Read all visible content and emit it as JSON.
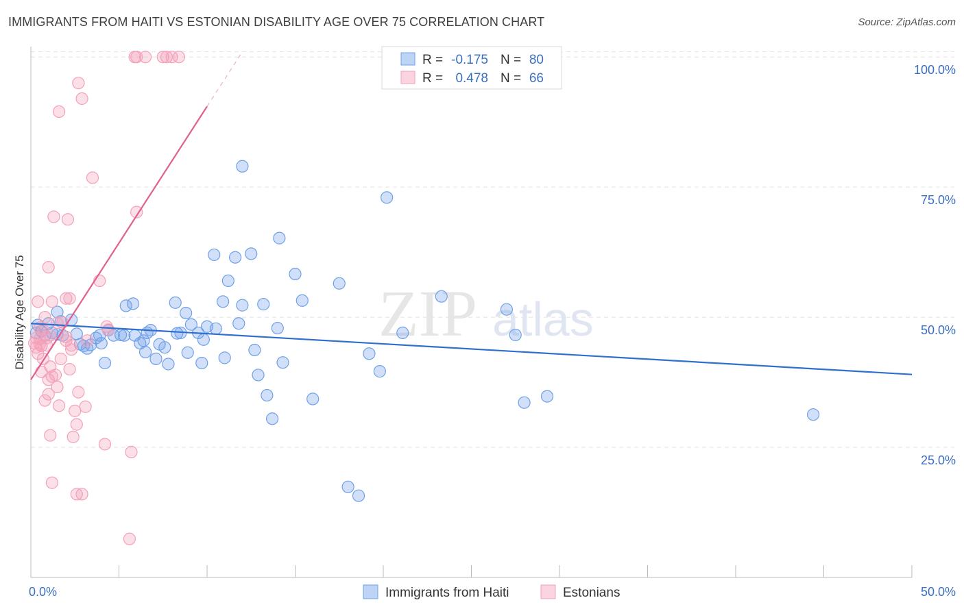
{
  "title": "IMMIGRANTS FROM HAITI VS ESTONIAN DISABILITY AGE OVER 75 CORRELATION CHART",
  "source": "Source: ZipAtlas.com",
  "watermark": {
    "zip": "ZIP",
    "atlas": "atlas"
  },
  "chart_data": {
    "type": "scatter",
    "ylabel": "Disability Age Over 75",
    "xlim": [
      0,
      50
    ],
    "ylim": [
      0,
      102
    ],
    "x_ticks_labeled": [
      {
        "value": 0,
        "label": "0.0%"
      },
      {
        "value": 50,
        "label": "50.0%"
      }
    ],
    "y_ticks": [
      {
        "value": 25,
        "label": "25.0%"
      },
      {
        "value": 50,
        "label": "50.0%"
      },
      {
        "value": 75,
        "label": "75.0%"
      },
      {
        "value": 100,
        "label": "100.0%"
      }
    ],
    "grid": true,
    "legend_position": "top-center",
    "series": [
      {
        "name": "Immigrants from Haiti",
        "color": "#6fa0e8",
        "line_color": "#2f6fcf",
        "stats": {
          "r_label": "R =",
          "r_value": "-0.175",
          "n_label": "N =",
          "n_value": "80"
        },
        "trend": {
          "x0": 0,
          "y0": 48.8,
          "x1": 50,
          "y1": 39.0
        },
        "points": [
          [
            0.4,
            48.5
          ],
          [
            0.6,
            47.3
          ],
          [
            0.8,
            46.5
          ],
          [
            1.0,
            48.8
          ],
          [
            1.2,
            47.0
          ],
          [
            1.5,
            51.0
          ],
          [
            1.7,
            49.2
          ],
          [
            1.8,
            46.5
          ],
          [
            2.3,
            49.5
          ],
          [
            2.6,
            46.8
          ],
          [
            2.8,
            44.8
          ],
          [
            3.0,
            44.5
          ],
          [
            3.2,
            44.0
          ],
          [
            3.4,
            44.7
          ],
          [
            3.9,
            46.5
          ],
          [
            4.0,
            45.0
          ],
          [
            4.2,
            41.2
          ],
          [
            4.4,
            47.5
          ],
          [
            4.7,
            46.5
          ],
          [
            5.1,
            46.6
          ],
          [
            5.3,
            46.5
          ],
          [
            5.4,
            52.2
          ],
          [
            5.8,
            52.6
          ],
          [
            5.9,
            46.5
          ],
          [
            6.2,
            45.0
          ],
          [
            6.4,
            45.5
          ],
          [
            6.5,
            43.3
          ],
          [
            6.6,
            47.0
          ],
          [
            6.8,
            47.5
          ],
          [
            7.1,
            42.0
          ],
          [
            7.3,
            44.8
          ],
          [
            7.6,
            44.2
          ],
          [
            7.8,
            41.0
          ],
          [
            8.2,
            52.8
          ],
          [
            8.3,
            46.9
          ],
          [
            8.5,
            47.0
          ],
          [
            8.8,
            50.8
          ],
          [
            8.9,
            43.2
          ],
          [
            9.1,
            48.6
          ],
          [
            9.5,
            47.0
          ],
          [
            9.7,
            41.2
          ],
          [
            9.8,
            45.7
          ],
          [
            10.0,
            48.2
          ],
          [
            10.5,
            47.8
          ],
          [
            10.4,
            62.0
          ],
          [
            10.9,
            53.0
          ],
          [
            11.0,
            42.2
          ],
          [
            11.6,
            61.5
          ],
          [
            11.2,
            57.0
          ],
          [
            11.8,
            48.8
          ],
          [
            12.0,
            52.3
          ],
          [
            12.0,
            79.0
          ],
          [
            12.5,
            62.2
          ],
          [
            12.7,
            43.7
          ],
          [
            12.9,
            38.9
          ],
          [
            13.2,
            52.5
          ],
          [
            13.4,
            35.0
          ],
          [
            13.7,
            30.5
          ],
          [
            14.0,
            47.9
          ],
          [
            14.1,
            65.2
          ],
          [
            14.3,
            41.3
          ],
          [
            15.0,
            58.3
          ],
          [
            15.4,
            53.2
          ],
          [
            16.0,
            34.3
          ],
          [
            17.5,
            56.5
          ],
          [
            18.0,
            17.4
          ],
          [
            18.6,
            15.7
          ],
          [
            19.2,
            43.0
          ],
          [
            19.8,
            39.6
          ],
          [
            20.2,
            73.0
          ],
          [
            21.1,
            47.0
          ],
          [
            23.3,
            54.0
          ],
          [
            27.0,
            51.5
          ],
          [
            27.5,
            46.6
          ],
          [
            28.0,
            33.6
          ],
          [
            29.3,
            34.8
          ],
          [
            44.4,
            31.3
          ],
          [
            0.3,
            47.0
          ],
          [
            1.5,
            46.7
          ],
          [
            3.7,
            46.0
          ]
        ]
      },
      {
        "name": "Estonians",
        "color": "#f4a0b8",
        "line_color": "#e0608f",
        "stats": {
          "r_label": "R =",
          "r_value": "0.478",
          "n_label": "N =",
          "n_value": "66"
        },
        "trend": {
          "x0": 0,
          "y0": 38.0,
          "x1": 10.0,
          "y1": 90.5
        },
        "trend_ext": {
          "x0": 10.0,
          "y0": 90.5,
          "x1": 12.0,
          "y1": 101.0
        },
        "points": [
          [
            0.2,
            45.0
          ],
          [
            0.3,
            46.0
          ],
          [
            0.3,
            44.2
          ],
          [
            0.4,
            43.0
          ],
          [
            0.4,
            53.0
          ],
          [
            0.5,
            48.0
          ],
          [
            0.5,
            45.8
          ],
          [
            0.6,
            44.5
          ],
          [
            0.6,
            39.5
          ],
          [
            0.7,
            47.5
          ],
          [
            0.7,
            42.0
          ],
          [
            0.8,
            50.0
          ],
          [
            0.8,
            34.0
          ],
          [
            0.9,
            46.0
          ],
          [
            0.9,
            44.6
          ],
          [
            1.0,
            59.6
          ],
          [
            1.0,
            35.2
          ],
          [
            1.0,
            38.0
          ],
          [
            1.1,
            46.5
          ],
          [
            1.1,
            40.5
          ],
          [
            1.1,
            27.3
          ],
          [
            1.2,
            53.0
          ],
          [
            1.2,
            38.6
          ],
          [
            1.2,
            18.2
          ],
          [
            1.3,
            69.3
          ],
          [
            1.4,
            38.9
          ],
          [
            1.5,
            48.9
          ],
          [
            1.5,
            36.6
          ],
          [
            1.6,
            89.5
          ],
          [
            1.6,
            33.0
          ],
          [
            1.7,
            42.0
          ],
          [
            1.8,
            49.0
          ],
          [
            2.0,
            46.2
          ],
          [
            2.0,
            45.5
          ],
          [
            2.0,
            53.6
          ],
          [
            2.1,
            68.8
          ],
          [
            2.2,
            53.6
          ],
          [
            2.2,
            40.0
          ],
          [
            2.3,
            44.6
          ],
          [
            2.4,
            27.0
          ],
          [
            2.5,
            32.0
          ],
          [
            2.6,
            29.4
          ],
          [
            2.6,
            16.0
          ],
          [
            2.7,
            35.6
          ],
          [
            2.7,
            95.0
          ],
          [
            2.9,
            92.0
          ],
          [
            2.9,
            16.0
          ],
          [
            3.1,
            32.8
          ],
          [
            3.2,
            45.5
          ],
          [
            3.5,
            76.8
          ],
          [
            3.9,
            57.0
          ],
          [
            4.2,
            25.6
          ],
          [
            4.3,
            48.2
          ],
          [
            4.4,
            47.6
          ],
          [
            5.6,
            7.4
          ],
          [
            5.7,
            24.1
          ],
          [
            6.0,
            70.2
          ],
          [
            5.9,
            100.0
          ],
          [
            6.0,
            100.0
          ],
          [
            6.5,
            100.0
          ],
          [
            7.5,
            100.0
          ],
          [
            7.7,
            100.0
          ],
          [
            8.0,
            100.0
          ],
          [
            8.4,
            100.0
          ],
          [
            0.5,
            44.8
          ],
          [
            2.3,
            43.8
          ]
        ]
      }
    ]
  }
}
